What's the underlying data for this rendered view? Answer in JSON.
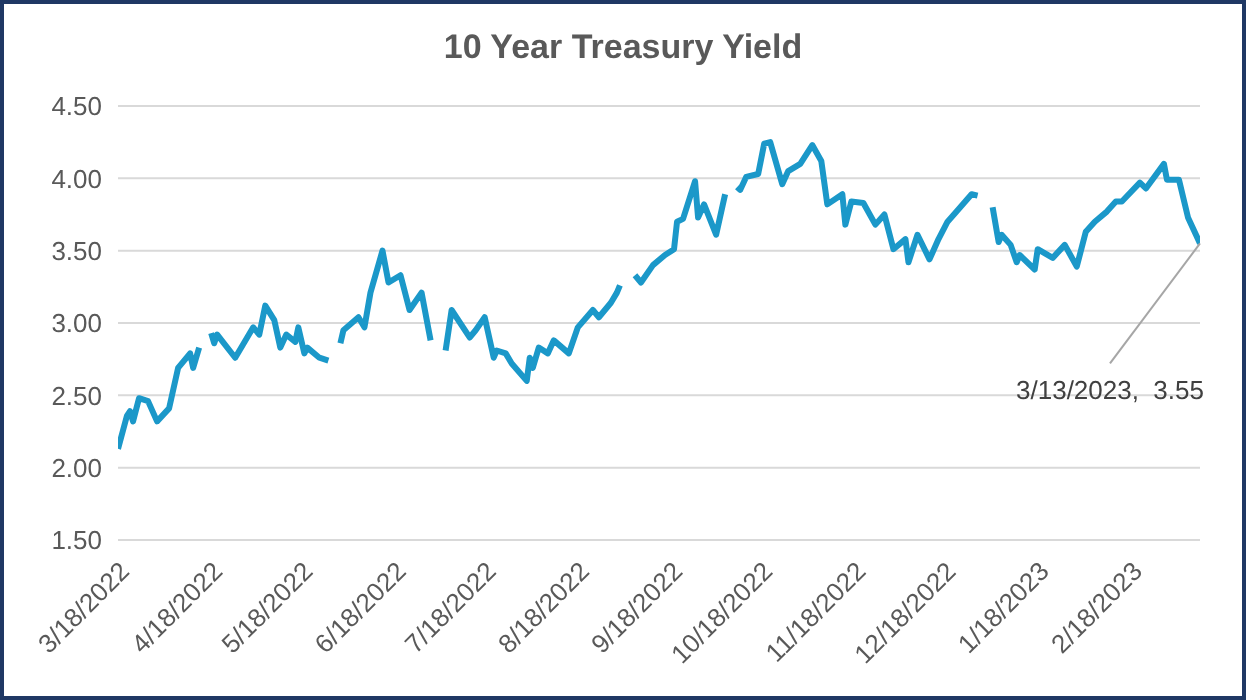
{
  "chart_data": {
    "type": "line",
    "title": "10 Year Treasury Yield",
    "x": [
      "2022-03-18",
      "2022-03-21",
      "2022-03-22",
      "2022-03-23",
      "2022-03-25",
      "2022-03-28",
      "2022-03-31",
      "2022-04-04",
      "2022-04-07",
      "2022-04-11",
      "2022-04-12",
      "2022-04-14",
      "2022-04-15",
      "2022-04-18",
      "2022-04-19",
      "2022-04-20",
      "2022-04-26",
      "2022-05-02",
      "2022-05-04",
      "2022-05-06",
      "2022-05-09",
      "2022-05-11",
      "2022-05-13",
      "2022-05-16",
      "2022-05-17",
      "2022-05-19",
      "2022-05-20",
      "2022-05-24",
      "2022-05-27",
      "2022-05-30",
      "2022-05-31",
      "2022-06-01",
      "2022-06-06",
      "2022-06-08",
      "2022-06-10",
      "2022-06-14",
      "2022-06-16",
      "2022-06-20",
      "2022-06-23",
      "2022-06-27",
      "2022-06-30",
      "2022-07-03",
      "2022-07-05",
      "2022-07-07",
      "2022-07-13",
      "2022-07-15",
      "2022-07-18",
      "2022-07-21",
      "2022-07-22",
      "2022-07-25",
      "2022-07-27",
      "2022-08-01",
      "2022-08-02",
      "2022-08-03",
      "2022-08-05",
      "2022-08-08",
      "2022-08-10",
      "2022-08-15",
      "2022-08-18",
      "2022-08-23",
      "2022-08-25",
      "2022-08-29",
      "2022-08-31",
      "2022-09-01",
      "2022-09-03",
      "2022-09-06",
      "2022-09-08",
      "2022-09-12",
      "2022-09-16",
      "2022-09-19",
      "2022-09-20",
      "2022-09-22",
      "2022-09-26",
      "2022-09-27",
      "2022-09-29",
      "2022-10-03",
      "2022-10-06",
      "2022-10-08",
      "2022-10-10",
      "2022-10-11",
      "2022-10-13",
      "2022-10-17",
      "2022-10-19",
      "2022-10-21",
      "2022-10-25",
      "2022-10-27",
      "2022-10-31",
      "2022-11-04",
      "2022-11-07",
      "2022-11-09",
      "2022-11-14",
      "2022-11-15",
      "2022-11-17",
      "2022-11-21",
      "2022-11-25",
      "2022-11-28",
      "2022-12-01",
      "2022-12-05",
      "2022-12-06",
      "2022-12-09",
      "2022-12-13",
      "2022-12-16",
      "2022-12-19",
      "2022-12-22",
      "2022-12-27",
      "2022-12-29",
      "2022-12-30",
      "2023-01-03",
      "2023-01-05",
      "2023-01-06",
      "2023-01-09",
      "2023-01-11",
      "2023-01-12",
      "2023-01-17",
      "2023-01-18",
      "2023-01-23",
      "2023-01-27",
      "2023-01-31",
      "2023-02-03",
      "2023-02-06",
      "2023-02-10",
      "2023-02-13",
      "2023-02-15",
      "2023-02-21",
      "2023-02-23",
      "2023-03-01",
      "2023-03-02",
      "2023-03-06",
      "2023-03-09",
      "2023-03-13"
    ],
    "series": [
      {
        "color": "#1b98c9",
        "values": [
          2.13,
          2.36,
          2.39,
          2.32,
          2.48,
          2.46,
          2.32,
          2.41,
          2.69,
          2.79,
          2.69,
          2.83,
          null,
          2.93,
          2.86,
          2.92,
          2.76,
          2.97,
          2.92,
          3.12,
          3.02,
          2.83,
          2.92,
          2.87,
          2.97,
          2.79,
          2.83,
          2.76,
          2.74,
          null,
          2.86,
          2.95,
          3.04,
          2.97,
          3.21,
          3.5,
          3.28,
          3.33,
          3.09,
          3.21,
          2.88,
          null,
          2.81,
          3.09,
          2.9,
          2.95,
          3.04,
          2.76,
          2.81,
          2.79,
          2.72,
          2.6,
          2.76,
          2.69,
          2.83,
          2.79,
          2.88,
          2.79,
          2.97,
          3.09,
          3.04,
          3.14,
          3.21,
          3.26,
          null,
          3.33,
          3.28,
          3.4,
          3.47,
          3.51,
          3.7,
          3.72,
          3.98,
          3.73,
          3.82,
          3.61,
          3.89,
          null,
          3.94,
          3.92,
          4.01,
          4.03,
          4.24,
          4.25,
          3.96,
          4.05,
          4.1,
          4.23,
          4.12,
          3.82,
          3.89,
          3.68,
          3.84,
          3.83,
          3.68,
          3.75,
          3.51,
          3.58,
          3.42,
          3.61,
          3.44,
          3.58,
          3.7,
          3.77,
          3.89,
          3.88,
          null,
          3.8,
          3.56,
          3.61,
          3.54,
          3.42,
          3.47,
          3.37,
          3.51,
          3.45,
          3.54,
          3.39,
          3.63,
          3.7,
          3.77,
          3.84,
          3.84,
          3.97,
          3.93,
          4.1,
          3.99,
          3.99,
          3.73,
          3.55
        ]
      }
    ],
    "xlim": [
      "2022-03-18",
      "2023-03-13"
    ],
    "xticks": [
      {
        "value": "2022-03-18",
        "label": "3/18/2022"
      },
      {
        "value": "2022-04-18",
        "label": "4/18/2022"
      },
      {
        "value": "2022-05-18",
        "label": "5/18/2022"
      },
      {
        "value": "2022-06-18",
        "label": "6/18/2022"
      },
      {
        "value": "2022-07-18",
        "label": "7/18/2022"
      },
      {
        "value": "2022-08-18",
        "label": "8/18/2022"
      },
      {
        "value": "2022-09-18",
        "label": "9/18/2022"
      },
      {
        "value": "2022-10-18",
        "label": "10/18/2022"
      },
      {
        "value": "2022-11-18",
        "label": "11/18/2022"
      },
      {
        "value": "2022-12-18",
        "label": "12/18/2022"
      },
      {
        "value": "2023-01-18",
        "label": "1/18/2023"
      },
      {
        "value": "2023-02-18",
        "label": "2/18/2023"
      }
    ],
    "ylim": [
      1.5,
      4.5
    ],
    "yticks": [
      {
        "value": 1.5,
        "label": "1.50"
      },
      {
        "value": 2,
        "label": "2.00"
      },
      {
        "value": 2.5,
        "label": "2.50"
      },
      {
        "value": 3,
        "label": "3.00"
      },
      {
        "value": 3.5,
        "label": "3.50"
      },
      {
        "value": 4,
        "label": "4.00"
      },
      {
        "value": 4.5,
        "label": "4.50"
      }
    ],
    "grid": "y",
    "legend": false,
    "marker": "none",
    "line_style": "solid",
    "annotations": [
      {
        "text": "3/13/2023,  3.55",
        "x": "2023-03-13",
        "y": 3.55
      }
    ]
  }
}
